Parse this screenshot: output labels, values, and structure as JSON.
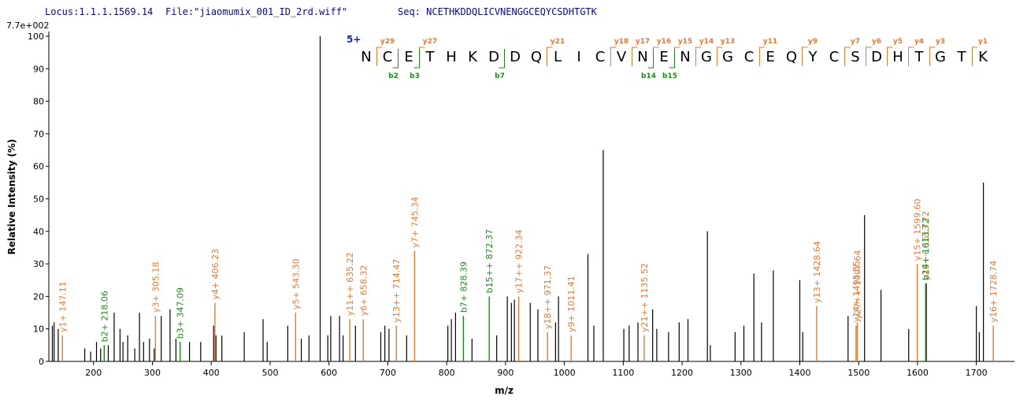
{
  "chart_data": {
    "type": "spectrum",
    "header": {
      "locus": "Locus:1.1.1.1569.14",
      "file": "File:\"jiaomumix_001_ID_2rd.wiff\"",
      "seq": "Seq: NCETHKDDQLICVNENGGCEQYCSDHTGTK"
    },
    "scale_label": "7.7e+002",
    "x_label": "m/z",
    "y_label": "Relative  Intensity (%)",
    "xlim": [
      124,
      1762
    ],
    "ylim": [
      0,
      100
    ],
    "xticks": [
      200,
      300,
      400,
      500,
      600,
      700,
      800,
      900,
      1000,
      1100,
      1200,
      1300,
      1400,
      1500,
      1600,
      1700
    ],
    "yticks": [
      0,
      10,
      20,
      30,
      40,
      50,
      60,
      70,
      80,
      90,
      100
    ],
    "peak_color": "#000000",
    "y_color": "#e07a3a",
    "b_color": "#1e8a1e",
    "peaks": {
      "mz": [
        130,
        133,
        140,
        185,
        195,
        205,
        212,
        225,
        235,
        245,
        250,
        258,
        270,
        278,
        285,
        295,
        303,
        315,
        330,
        340,
        363,
        382,
        404,
        408,
        418,
        456,
        488,
        495,
        530,
        553,
        566,
        585,
        598,
        603,
        618,
        624,
        645,
        688,
        695,
        702,
        732,
        802,
        808,
        815,
        843,
        885,
        903,
        910,
        915,
        942,
        955,
        985,
        990,
        1040,
        1050,
        1066,
        1101,
        1110,
        1125,
        1150,
        1157,
        1177,
        1195,
        1210,
        1243,
        1248,
        1290,
        1305,
        1322,
        1335,
        1355,
        1400,
        1405,
        1482,
        1510,
        1538,
        1585,
        1615,
        1700,
        1705,
        1712
      ],
      "intensity": [
        11,
        12,
        10,
        4,
        3,
        6,
        4,
        5,
        15,
        10,
        6,
        8,
        4,
        15,
        6,
        7,
        4,
        14,
        16,
        7,
        6,
        6,
        11,
        8,
        8,
        9,
        13,
        6,
        11,
        7,
        8,
        100,
        8,
        14,
        14,
        8,
        11,
        9,
        11,
        10,
        8,
        11,
        13,
        15,
        7,
        8,
        20,
        18,
        19,
        18,
        16,
        12,
        20,
        33,
        11,
        65,
        10,
        11,
        12,
        16,
        10,
        9,
        12,
        13,
        40,
        5,
        9,
        11,
        27,
        12,
        28,
        25,
        9,
        14,
        45,
        22,
        10,
        24,
        17,
        9,
        55
      ]
    },
    "annotations": [
      {
        "label": "y1+ 147.11",
        "mz": 147.11,
        "intensity": 8,
        "ion": "y"
      },
      {
        "label": "b2+ 218.06",
        "mz": 218.06,
        "intensity": 5,
        "ion": "b"
      },
      {
        "label": "y3+ 305.18",
        "mz": 305.18,
        "intensity": 14,
        "ion": "y"
      },
      {
        "label": "b3+ 347.09",
        "mz": 347.09,
        "intensity": 6,
        "ion": "b"
      },
      {
        "label": "y4+ 406.23",
        "mz": 406.23,
        "intensity": 18,
        "ion": "y"
      },
      {
        "label": "y5+ 543.30",
        "mz": 543.3,
        "intensity": 15,
        "ion": "y"
      },
      {
        "label": "y11++ 635.22",
        "mz": 635.22,
        "intensity": 13,
        "ion": "y"
      },
      {
        "label": "y6+ 658.32",
        "mz": 658.32,
        "intensity": 13,
        "ion": "y"
      },
      {
        "label": "y13++ 714.47",
        "mz": 714.47,
        "intensity": 11,
        "ion": "y"
      },
      {
        "label": "y7+ 745.34",
        "mz": 745.34,
        "intensity": 34,
        "ion": "y"
      },
      {
        "label": "b7+ 828.39",
        "mz": 828.39,
        "intensity": 14,
        "ion": "b"
      },
      {
        "label": "b15++ 872.37",
        "mz": 872.37,
        "intensity": 20,
        "ion": "b"
      },
      {
        "label": "y17++ 922.34",
        "mz": 922.34,
        "intensity": 20,
        "ion": "y"
      },
      {
        "label": "y18++ 971.37",
        "mz": 971.37,
        "intensity": 9,
        "ion": "y"
      },
      {
        "label": "y9+ 1011.41",
        "mz": 1011.41,
        "intensity": 8,
        "ion": "y"
      },
      {
        "label": "y21++ 1135.52",
        "mz": 1135.52,
        "intensity": 8,
        "ion": "y"
      },
      {
        "label": "y13+ 1428.64",
        "mz": 1428.64,
        "intensity": 17,
        "ion": "y"
      },
      {
        "label": "y14+ 1495.55",
        "mz": 1495.55,
        "intensity": 11,
        "ion": "y"
      },
      {
        "label": "y27++ 1497.64",
        "mz": 1497.64,
        "intensity": 12,
        "ion": "y"
      },
      {
        "label": "y15+ 1599.60",
        "mz": 1599.6,
        "intensity": 30,
        "ion": "y"
      },
      {
        "label": "y29++ 1613.72",
        "mz": 1613.72,
        "intensity": 24,
        "ion": "y"
      },
      {
        "label": "b14+ 1613.72",
        "mz": 1613.72,
        "intensity": 24,
        "ion": "b"
      },
      {
        "label": "y16+ 1728.74",
        "mz": 1728.74,
        "intensity": 11,
        "ion": "y"
      }
    ],
    "sequence": {
      "charge": "5+",
      "residues": [
        "N",
        "C",
        "E",
        "T",
        "H",
        "K",
        "D",
        "D",
        "Q",
        "L",
        "I",
        "C",
        "V",
        "N",
        "E",
        "N",
        "G",
        "G",
        "C",
        "E",
        "Q",
        "Y",
        "C",
        "S",
        "D",
        "H",
        "T",
        "G",
        "T",
        "K"
      ],
      "y_ions": [
        {
          "label": "y29",
          "n": 29
        },
        {
          "label": "y27",
          "n": 27
        },
        {
          "label": "y21",
          "n": 21
        },
        {
          "label": "y18",
          "n": 18
        },
        {
          "label": "y17",
          "n": 17
        },
        {
          "label": "y16",
          "n": 16
        },
        {
          "label": "y15",
          "n": 15
        },
        {
          "label": "y14",
          "n": 14
        },
        {
          "label": "y13",
          "n": 13
        },
        {
          "label": "y11",
          "n": 11
        },
        {
          "label": "y9",
          "n": 9
        },
        {
          "label": "y7",
          "n": 7
        },
        {
          "label": "y6",
          "n": 6
        },
        {
          "label": "y5",
          "n": 5
        },
        {
          "label": "y4",
          "n": 4
        },
        {
          "label": "y3",
          "n": 3
        },
        {
          "label": "y1",
          "n": 1
        }
      ],
      "b_ions": [
        {
          "label": "b2",
          "n": 2
        },
        {
          "label": "b3",
          "n": 3
        },
        {
          "label": "b7",
          "n": 7
        },
        {
          "label": "b14",
          "n": 14
        },
        {
          "label": "b15",
          "n": 15
        }
      ]
    }
  }
}
